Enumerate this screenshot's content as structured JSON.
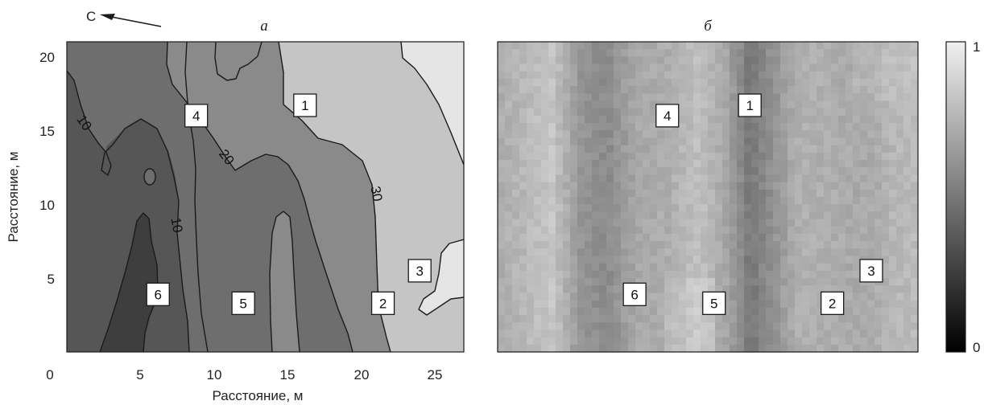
{
  "chart_data": [
    {
      "type": "contour",
      "title": "а",
      "xlabel": "Расстояние, м",
      "ylabel": "Расстояние, м",
      "xlim": [
        0,
        27
      ],
      "ylim": [
        0,
        21
      ],
      "xticks": [
        "0",
        "5",
        "10",
        "15",
        "20",
        "25"
      ],
      "yticks": [
        "5",
        "10",
        "15",
        "20"
      ],
      "north_label": "С",
      "contour_labels": [
        "10",
        "20",
        "10",
        "30"
      ],
      "fill_colors": [
        "#565656",
        "#6e6e6e",
        "#8a8a8a",
        "#a8a8a8",
        "#c5c5c5",
        "#e5e5e5"
      ],
      "markers": [
        {
          "label": "1",
          "x": 16.2,
          "y": 16.7
        },
        {
          "label": "2",
          "x": 21.5,
          "y": 3.3
        },
        {
          "label": "3",
          "x": 24.0,
          "y": 5.5
        },
        {
          "label": "4",
          "x": 8.8,
          "y": 16.0
        },
        {
          "label": "5",
          "x": 12.0,
          "y": 3.3
        },
        {
          "label": "6",
          "x": 6.2,
          "y": 3.9
        }
      ]
    },
    {
      "type": "heatmap",
      "title": "б",
      "xlim": [
        0,
        27
      ],
      "ylim": [
        0,
        21
      ],
      "colorbar": {
        "min_label": "0",
        "max_label": "1",
        "min": 0,
        "max": 1,
        "colormap": "gray"
      },
      "markers": [
        {
          "label": "1",
          "x": 16.2,
          "y": 16.7
        },
        {
          "label": "2",
          "x": 21.5,
          "y": 3.3
        },
        {
          "label": "3",
          "x": 24.0,
          "y": 5.5
        },
        {
          "label": "4",
          "x": 10.9,
          "y": 16.0
        },
        {
          "label": "5",
          "x": 13.9,
          "y": 3.3
        },
        {
          "label": "6",
          "x": 8.8,
          "y": 3.9
        }
      ]
    }
  ]
}
